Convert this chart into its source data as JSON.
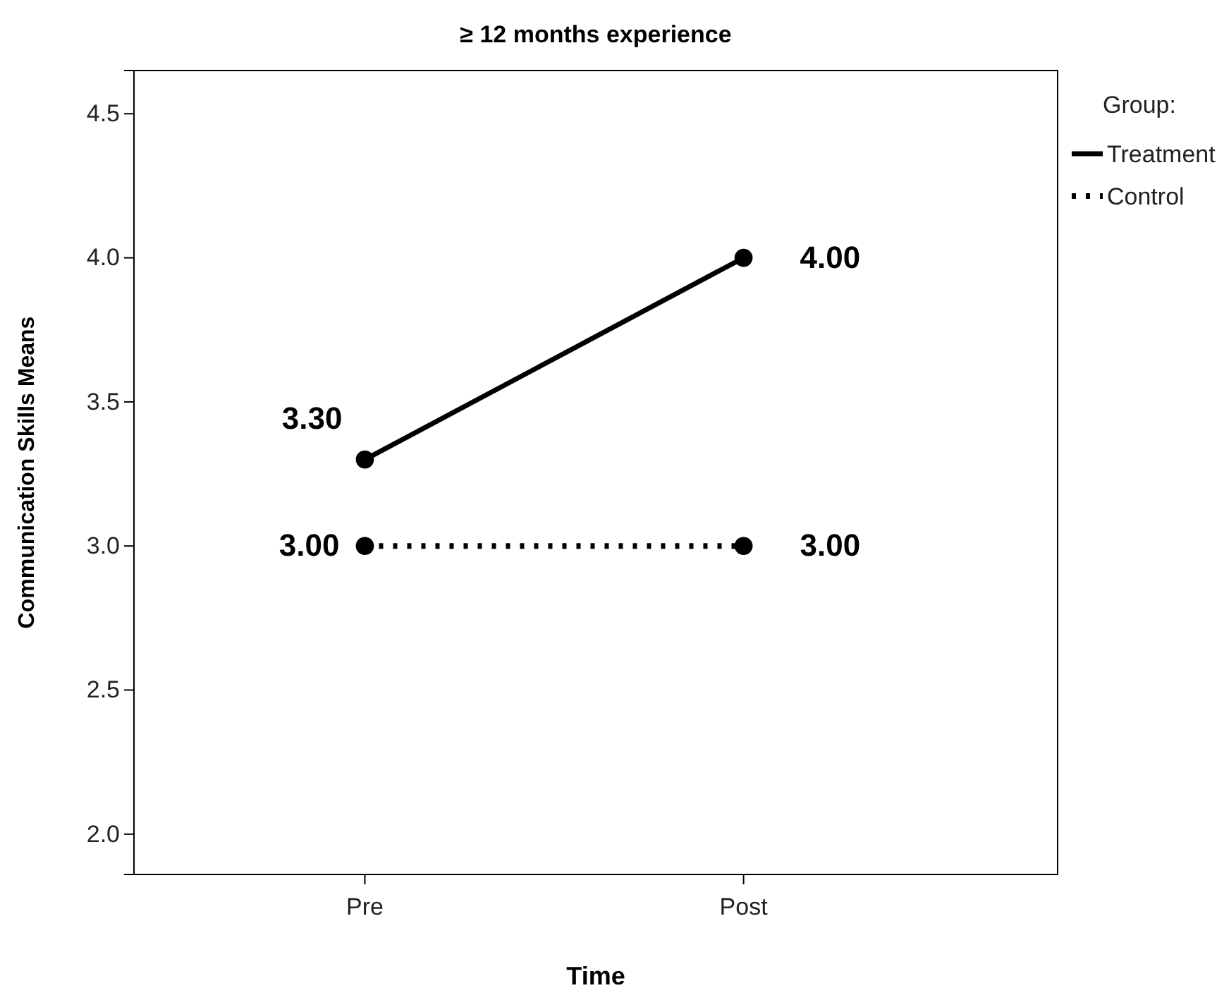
{
  "chart_data": {
    "type": "line",
    "title": "≥ 12 months experience",
    "xlabel": "Time",
    "ylabel": "Communication Skills Means",
    "legend_title": "Group:",
    "categories": [
      "Pre",
      "Post"
    ],
    "series": [
      {
        "name": "Treatment",
        "color": "#000000",
        "values": [
          3.3,
          4.0
        ],
        "value_labels": [
          "3.30",
          "4.00"
        ],
        "line_style": "solid"
      },
      {
        "name": "Control",
        "color": "#000000",
        "values": [
          3.0,
          3.0
        ],
        "value_labels": [
          "3.00",
          "3.00"
        ],
        "line_style": "dotted"
      }
    ],
    "ylim": [
      1.86,
      4.65
    ],
    "yticks": [
      {
        "value": 2.0,
        "label": "2.0"
      },
      {
        "value": 2.5,
        "label": "2.5"
      },
      {
        "value": 3.0,
        "label": "3.0"
      },
      {
        "value": 3.5,
        "label": "3.5"
      },
      {
        "value": 4.0,
        "label": "4.0"
      },
      {
        "value": 4.5,
        "label": "4.5"
      }
    ],
    "marker": "circle",
    "legend": "top right",
    "grid": false
  }
}
